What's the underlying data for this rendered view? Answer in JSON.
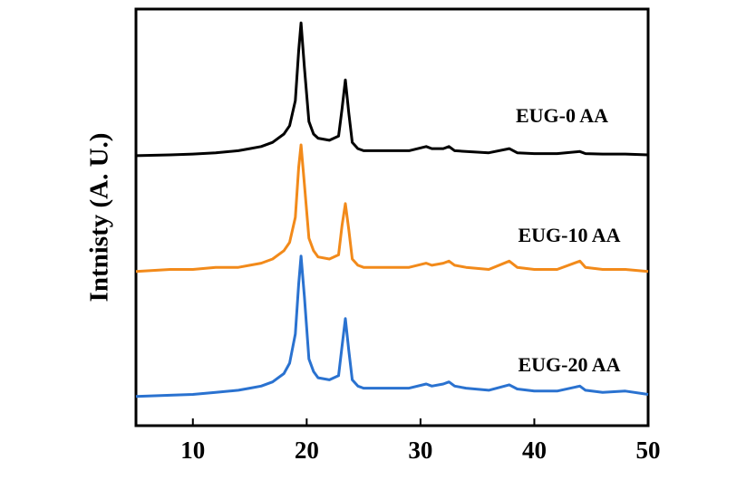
{
  "chart_data": {
    "type": "line",
    "ylabel": "Intnisty (A. U.)",
    "x": [
      5,
      8,
      10,
      12,
      14,
      15,
      16,
      17,
      18,
      18.5,
      19,
      19.3,
      19.5,
      19.8,
      20.2,
      20.6,
      21,
      22,
      22.8,
      23.1,
      23.4,
      23.7,
      24,
      24.5,
      25,
      27,
      29,
      30.5,
      31,
      32,
      32.5,
      33,
      34,
      36,
      37.8,
      38.5,
      40,
      42,
      44,
      44.5,
      46,
      48,
      50
    ],
    "series": [
      {
        "name": "EUG-0 AA",
        "color": "#000000",
        "values": [
          64.8,
          65,
          65.2,
          65.5,
          66,
          66.5,
          67,
          68,
          70,
          72,
          78,
          90,
          96.7,
          86,
          73,
          70,
          69,
          68.5,
          69.5,
          76,
          83,
          75,
          68,
          66.5,
          66,
          66,
          66,
          67,
          66.5,
          66.5,
          67,
          66,
          65.8,
          65.5,
          66.5,
          65.5,
          65.3,
          65.3,
          65.8,
          65.3,
          65.2,
          65.2,
          65
        ]
      },
      {
        "name": "EUG-10 AA",
        "color": "#f28a1a",
        "values": [
          37,
          37.5,
          37.5,
          38,
          38,
          38.5,
          39,
          40,
          42,
          44,
          50,
          62,
          67.4,
          58,
          45,
          42,
          40.5,
          40,
          41,
          48,
          53.3,
          47,
          40,
          38.5,
          38,
          38,
          38,
          39,
          38.5,
          39,
          39.5,
          38.5,
          38,
          37.5,
          39.5,
          38,
          37.5,
          37.5,
          39.5,
          38,
          37.5,
          37.5,
          37
        ]
      },
      {
        "name": "EUG-20 AA",
        "color": "#2a72d0",
        "values": [
          7,
          7.3,
          7.5,
          8,
          8.5,
          9,
          9.5,
          10.5,
          12.5,
          15,
          22,
          34,
          40.7,
          31,
          16,
          13,
          11.5,
          11,
          12,
          19,
          25.7,
          18,
          11,
          9.5,
          9,
          9,
          9,
          10,
          9.5,
          10,
          10.5,
          9.5,
          9,
          8.5,
          9.8,
          8.8,
          8.3,
          8.3,
          9.5,
          8.5,
          8,
          8.3,
          7.5
        ]
      }
    ],
    "xlim": [
      5,
      50
    ],
    "xticks": [
      10,
      20,
      30,
      40,
      50
    ],
    "ylim": [
      0,
      100
    ]
  }
}
